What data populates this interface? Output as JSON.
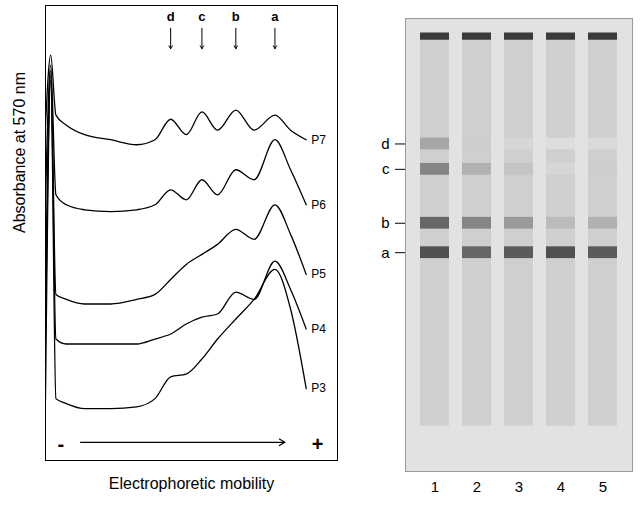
{
  "chart_data": [
    {
      "type": "line",
      "x_label": "Electrophoretic mobility",
      "y_label": "Absorbance at 570 nm",
      "tick_labels": false,
      "xlim": [
        0,
        112
      ],
      "ylim": [
        0,
        100
      ],
      "x": [
        0,
        2,
        4,
        8,
        15,
        25,
        35,
        42,
        48,
        54,
        60,
        66,
        73,
        80,
        88,
        94,
        100
      ],
      "series": [
        {
          "name": "P7",
          "color": "#000000",
          "values": [
            73.7,
            89.1,
            75.9,
            73.7,
            71.6,
            70.5,
            69.4,
            70.5,
            75.0,
            71.6,
            76.6,
            72.6,
            77.0,
            72.6,
            75.9,
            72.6,
            70.5
          ]
        },
        {
          "name": "P6",
          "color": "#000000",
          "values": [
            57.3,
            86.9,
            58.4,
            56.2,
            55.1,
            54.7,
            55.1,
            56.2,
            59.5,
            57.3,
            61.7,
            58.4,
            63.9,
            61.7,
            70.5,
            63.9,
            56.2
          ]
        },
        {
          "name": "P5",
          "color": "#000000",
          "values": [
            35.4,
            85.8,
            36.5,
            35.4,
            34.4,
            34.4,
            35.4,
            36.5,
            39.8,
            43.1,
            45.3,
            47.5,
            50.8,
            48.6,
            56.2,
            49.7,
            40.9
          ]
        },
        {
          "name": "P4",
          "color": "#000000",
          "values": [
            26.7,
            84.7,
            26.7,
            25.6,
            25.6,
            25.6,
            25.6,
            26.7,
            27.8,
            30.0,
            31.5,
            32.2,
            37.0,
            35.4,
            43.8,
            37.6,
            28.9
          ]
        },
        {
          "name": "P3",
          "color": "#000000",
          "values": [
            13.6,
            83.6,
            13.6,
            12.5,
            11.4,
            11.4,
            11.8,
            13.6,
            18.4,
            19.0,
            22.3,
            26.7,
            31.1,
            35.4,
            42.0,
            33.3,
            15.8
          ]
        }
      ],
      "peak_labels": {
        "labels": [
          "d",
          "c",
          "b",
          "a"
        ],
        "x": [
          48,
          60,
          73,
          88
        ]
      },
      "mobility_direction": {
        "from_label": "-",
        "to_label": "+"
      }
    },
    {
      "type": "gel",
      "categories": [
        "1",
        "2",
        "3",
        "4",
        "5"
      ],
      "ylim": [
        0,
        100
      ],
      "well_position": 4,
      "bands": [
        {
          "name": "d",
          "position": 27.7,
          "values": [
            0.4,
            0.2,
            0.15,
            0.1,
            0.12
          ]
        },
        {
          "name": "c",
          "position": 33.3,
          "values": [
            0.55,
            0.35,
            0.25,
            0.15,
            0.2
          ]
        },
        {
          "name": "b",
          "position": 45.2,
          "values": [
            0.7,
            0.55,
            0.45,
            0.3,
            0.35
          ]
        },
        {
          "name": "a",
          "position": 51.7,
          "values": [
            0.8,
            0.7,
            0.75,
            0.8,
            0.75
          ]
        }
      ]
    }
  ]
}
